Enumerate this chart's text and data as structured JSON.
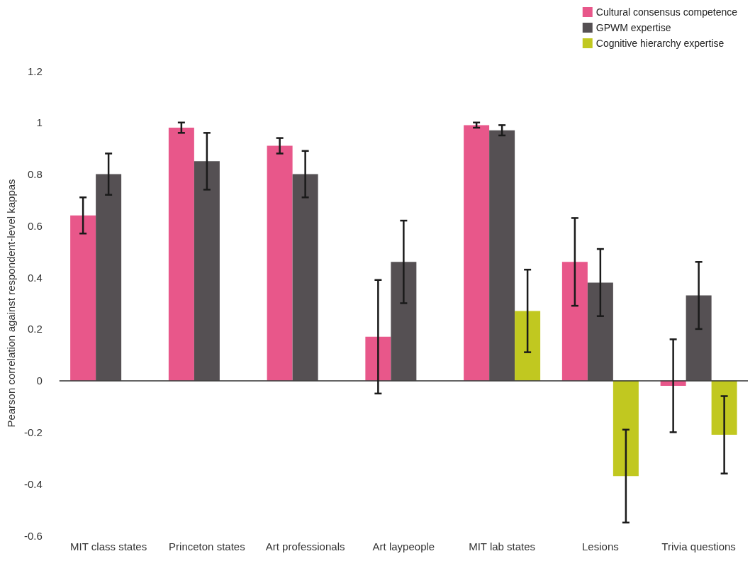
{
  "chart_data": {
    "type": "bar",
    "ylabel": "Pearson correlation against respondent-level kappas",
    "categories": [
      "MIT class states",
      "Princeton states",
      "Art professionals",
      "Art laypeople",
      "MIT lab states",
      "Lesions",
      "Trivia questions"
    ],
    "series": [
      {
        "name": "Cultural consensus competence",
        "color": "#e8578a",
        "values": [
          0.64,
          0.98,
          0.91,
          0.17,
          0.99,
          0.46,
          -0.02
        ],
        "errors": [
          0.07,
          0.02,
          0.03,
          0.22,
          0.01,
          0.17,
          0.18
        ]
      },
      {
        "name": "GPWM expertise",
        "color": "#555053",
        "values": [
          0.8,
          0.85,
          0.8,
          0.46,
          0.97,
          0.38,
          0.33
        ],
        "errors": [
          0.08,
          0.11,
          0.09,
          0.16,
          0.02,
          0.13,
          0.13
        ]
      },
      {
        "name": "Cognitive hierarchy expertise",
        "color": "#c1c820",
        "values": [
          null,
          null,
          null,
          null,
          0.27,
          -0.37,
          -0.21
        ],
        "errors": [
          null,
          null,
          null,
          null,
          0.16,
          0.18,
          0.15
        ]
      }
    ],
    "ylim": [
      -0.6,
      1.2
    ],
    "yticks": [
      -0.6,
      -0.4,
      -0.2,
      0,
      0.2,
      0.4,
      0.6,
      0.8,
      1,
      1.2
    ],
    "ref_lines": [
      {
        "axis": "y",
        "value": 0,
        "color": "#333333"
      }
    ],
    "grid": false,
    "legend": "top right"
  }
}
